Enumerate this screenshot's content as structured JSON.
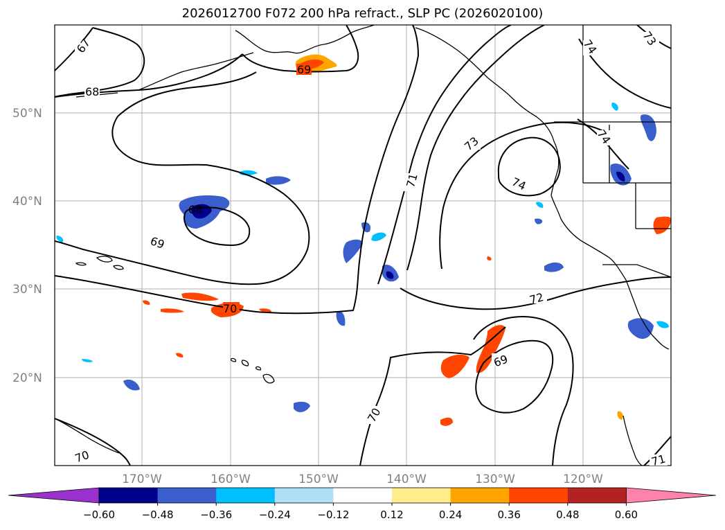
{
  "title": "2026012700 F072 200 hPa refract., SLP PC (2026020100)",
  "lat_labels": [
    "50°N",
    "40°N",
    "30°N",
    "20°N"
  ],
  "lon_labels": [
    "170°W",
    "160°W",
    "150°W",
    "140°W",
    "130°W",
    "120°W"
  ],
  "contour_labels": [
    "67",
    "68",
    "69",
    "68",
    "69",
    "70",
    "70",
    "71",
    "73",
    "74",
    "74",
    "74",
    "73",
    "72",
    "69",
    "70",
    "71"
  ],
  "colorbar": {
    "colors": [
      "#9932CC",
      "#00008B",
      "#3A5FCD",
      "#00BFFF",
      "#ADE0F7",
      "#FFFFFF",
      "#FFEC8B",
      "#FFA500",
      "#FF4500",
      "#B22222",
      "#FF82AB"
    ],
    "tick_labels": [
      "−0.60",
      "−0.48",
      "−0.36",
      "−0.24",
      "−0.12",
      "0.12",
      "0.24",
      "0.36",
      "0.48",
      "0.60"
    ]
  }
}
